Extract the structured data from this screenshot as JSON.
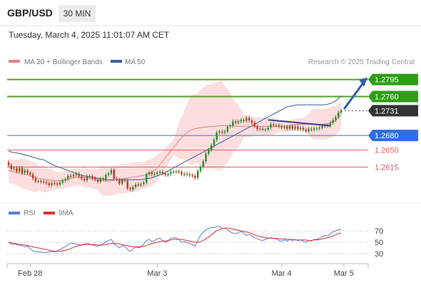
{
  "header": {
    "instrument": "GBP/USD",
    "timeframe": "30 MIN",
    "datetime": "Tuesday, March 4, 2025 11:01:07 AM CET"
  },
  "legend": {
    "ma20": "MA 20 + Bollinger Bands",
    "ma50": "MA 50",
    "credit": "Research © 2025 Trading Central"
  },
  "rsi_legend": {
    "rsi": "RSI",
    "ma": "9MA"
  },
  "colors": {
    "bull": "#2d8a2d",
    "bear": "#c0392b",
    "ma20": "#e88080",
    "ma50": "#3a5f9f",
    "band_fill": "#fbd8d8",
    "pivot": "#3a6fd8",
    "support": "#e06060",
    "resistance": "#5aa02c",
    "current": "#333333",
    "rsi": "#5b7fd6",
    "rsi_ma": "#e03030",
    "arrow": "#2f5fa8",
    "trend": "#3a3f8f"
  },
  "chart_data": [
    {
      "type": "candlestick",
      "title": "GBP/USD 30 MIN",
      "ylim": [
        1.256,
        1.2815
      ],
      "y_ticks": [],
      "x_ticks": [
        "Feb 28",
        "Mar 3",
        "Mar 4",
        "Mar 5"
      ],
      "x_tick_index": [
        8,
        55,
        101,
        124
      ],
      "levels": [
        {
          "label": "1.2795",
          "value": 1.2795,
          "role": "resistance"
        },
        {
          "label": "1.2760",
          "value": 1.276,
          "role": "resistance"
        },
        {
          "label": "1.2731",
          "value": 1.2731,
          "role": "current"
        },
        {
          "label": "1.2680",
          "value": 1.268,
          "role": "pivot"
        },
        {
          "label": "1.2650",
          "value": 1.265,
          "role": "support"
        },
        {
          "label": "1.2615",
          "value": 1.2615,
          "role": "support"
        }
      ],
      "closes": [
        1.2619,
        1.2611,
        1.2613,
        1.2606,
        1.2613,
        1.2603,
        1.2608,
        1.2603,
        1.26,
        1.2592,
        1.2586,
        1.2586,
        1.2585,
        1.2584,
        1.2582,
        1.2578,
        1.2582,
        1.2581,
        1.2579,
        1.2583,
        1.2587,
        1.259,
        1.2597,
        1.2596,
        1.2599,
        1.2601,
        1.2596,
        1.2591,
        1.2588,
        1.2595,
        1.2596,
        1.2592,
        1.2589,
        1.2585,
        1.2591,
        1.259,
        1.2599,
        1.2602,
        1.2609,
        1.2591,
        1.2589,
        1.2581,
        1.2588,
        1.2587,
        1.2571,
        1.2569,
        1.2574,
        1.2579,
        1.2578,
        1.258,
        1.2583,
        1.26,
        1.2604,
        1.26,
        1.2601,
        1.2604,
        1.2605,
        1.2602,
        1.2599,
        1.2601,
        1.2605,
        1.2606,
        1.2606,
        1.2605,
        1.26,
        1.2601,
        1.26,
        1.2598,
        1.2597,
        1.2593,
        1.2607,
        1.2615,
        1.2627,
        1.2643,
        1.265,
        1.266,
        1.2671,
        1.2686,
        1.2688,
        1.2686,
        1.2688,
        1.2698,
        1.27,
        1.2709,
        1.2706,
        1.2709,
        1.2712,
        1.271,
        1.2716,
        1.2711,
        1.2706,
        1.2699,
        1.2693,
        1.2694,
        1.2692,
        1.2692,
        1.2696,
        1.2703,
        1.2701,
        1.2701,
        1.2699,
        1.2697,
        1.2698,
        1.2694,
        1.2699,
        1.2694,
        1.2698,
        1.2693,
        1.2695,
        1.2692,
        1.2689,
        1.2693,
        1.2692,
        1.2694,
        1.2694,
        1.2696,
        1.2699,
        1.2701,
        1.27,
        1.2706,
        1.2712,
        1.2718,
        1.2727,
        1.2731
      ],
      "ma20_values": [
        1.2608,
        1.2606,
        1.2605,
        1.2604,
        1.2603,
        1.2602,
        1.26,
        1.2599,
        1.2597,
        1.2595,
        1.2594,
        1.2592,
        1.2591,
        1.259,
        1.2589,
        1.2588,
        1.2588,
        1.2587,
        1.2587,
        1.2587,
        1.2588,
        1.2589,
        1.259,
        1.2592,
        1.2593,
        1.2594,
        1.2594,
        1.2595,
        1.2594,
        1.2593,
        1.2592,
        1.2591,
        1.259,
        1.2589,
        1.2588,
        1.2587,
        1.2586,
        1.2586,
        1.2587,
        1.2588,
        1.2589,
        1.259,
        1.2591,
        1.2591,
        1.2592,
        1.2593,
        1.2594,
        1.2595,
        1.2596,
        1.2597,
        1.2598,
        1.26,
        1.2602,
        1.2604,
        1.2608,
        1.2614,
        1.262,
        1.2627,
        1.2634,
        1.2641,
        1.2648,
        1.2655,
        1.2662,
        1.2669,
        1.2675,
        1.2681,
        1.2686,
        1.269,
        1.2692,
        1.2694,
        1.2695,
        1.2696,
        1.2697,
        1.2697,
        1.2698,
        1.2698,
        1.2699,
        1.2699,
        1.27,
        1.27,
        1.27,
        1.27,
        1.27,
        1.27,
        1.2699,
        1.2699,
        1.2699,
        1.2699,
        1.2699,
        1.2699,
        1.2699,
        1.2699,
        1.2699,
        1.2699,
        1.2699,
        1.2699,
        1.2699,
        1.2699,
        1.2699,
        1.2699,
        1.2699,
        1.2699,
        1.2699,
        1.2699,
        1.27,
        1.2701,
        1.2702,
        1.2703,
        1.2703,
        1.2703,
        1.2703,
        1.2703,
        1.2703,
        1.2703,
        1.2703,
        1.2703,
        1.2703,
        1.2703,
        1.2704,
        1.2706,
        1.2708,
        1.2711,
        1.2716,
        1.2721
      ],
      "ma50_values": [
        1.2669,
        1.2666,
        1.2663,
        1.266,
        1.2657,
        1.2654,
        1.2651,
        1.2648,
        1.2645,
        1.2642,
        1.2639,
        1.2636,
        1.2633,
        1.263,
        1.2627,
        1.2624,
        1.2621,
        1.2618,
        1.2616,
        1.2614,
        1.2612,
        1.261,
        1.2608,
        1.2606,
        1.2604,
        1.2602,
        1.26,
        1.2598,
        1.2597,
        1.2596,
        1.2595,
        1.2594,
        1.2593,
        1.2592,
        1.2591,
        1.259,
        1.2589,
        1.2589,
        1.2589,
        1.2589,
        1.2589,
        1.2589,
        1.2589,
        1.2589,
        1.2589,
        1.2589,
        1.2589,
        1.2589,
        1.2589,
        1.2589,
        1.259,
        1.2591,
        1.2592,
        1.2593,
        1.2595,
        1.2597,
        1.2599,
        1.2601,
        1.2604,
        1.2607,
        1.261,
        1.2613,
        1.2616,
        1.2619,
        1.2622,
        1.2625,
        1.2628,
        1.2631,
        1.2634,
        1.2637,
        1.264,
        1.2643,
        1.2646,
        1.2649,
        1.2652,
        1.2655,
        1.2658,
        1.2661,
        1.2664,
        1.2667,
        1.267,
        1.2673,
        1.2676,
        1.2679,
        1.2682,
        1.2685,
        1.2688,
        1.2691,
        1.2694,
        1.2697,
        1.27,
        1.2703,
        1.2706,
        1.2709,
        1.2712,
        1.2715,
        1.2718,
        1.2721,
        1.2724,
        1.2727,
        1.273,
        1.2733,
        1.2736,
        1.2739,
        1.2742,
        1.2745,
        1.2748,
        1.2751,
        1.2754,
        1.2757,
        1.276,
        1.2763,
        1.2766,
        1.2769,
        1.2772,
        1.2775,
        1.2778,
        1.2781,
        1.2784,
        1.2787,
        1.279,
        1.2793,
        1.2796,
        1.2799,
        1.2802
      ]
    },
    {
      "type": "line",
      "title": "RSI",
      "ylim": [
        20,
        80
      ],
      "y_ticks": [
        70,
        50,
        30
      ],
      "series": [
        {
          "name": "RSI",
          "values": [
            49,
            47,
            47,
            46,
            45,
            44,
            42,
            43,
            39,
            35,
            34,
            33,
            33,
            32,
            32,
            33,
            34,
            33,
            35,
            37,
            40,
            42,
            46,
            48,
            48,
            47,
            46,
            45,
            47,
            48,
            47,
            45,
            44,
            43,
            45,
            47,
            51,
            53,
            55,
            47,
            44,
            40,
            44,
            43,
            37,
            34,
            38,
            42,
            40,
            42,
            47,
            53,
            55,
            51,
            53,
            56,
            57,
            53,
            50,
            52,
            57,
            58,
            57,
            55,
            50,
            51,
            50,
            48,
            46,
            43,
            53,
            62,
            68,
            72,
            74,
            76,
            76,
            77,
            78,
            74,
            75,
            72,
            68,
            66,
            65,
            67,
            69,
            66,
            62,
            64,
            61,
            58,
            56,
            54,
            53,
            55,
            57,
            58,
            57,
            56,
            53,
            52,
            54,
            52,
            55,
            53,
            55,
            53,
            54,
            52,
            50,
            53,
            52,
            55,
            55,
            57,
            60,
            62,
            61,
            65,
            68,
            70,
            72,
            72
          ]
        },
        {
          "name": "9MA",
          "values": [
            50,
            49,
            48,
            47,
            46,
            46,
            45,
            44,
            43,
            42,
            41,
            40,
            39,
            38,
            37,
            36,
            35,
            34,
            34,
            34,
            35,
            36,
            37,
            39,
            41,
            43,
            44,
            45,
            46,
            46,
            46,
            46,
            46,
            45,
            45,
            45,
            46,
            47,
            48,
            48,
            48,
            47,
            46,
            45,
            44,
            43,
            42,
            42,
            42,
            42,
            43,
            44,
            46,
            48,
            49,
            50,
            51,
            52,
            52,
            53,
            54,
            55,
            55,
            55,
            55,
            54,
            53,
            52,
            51,
            50,
            50,
            51,
            53,
            56,
            59,
            63,
            67,
            70,
            72,
            74,
            75,
            75,
            74,
            73,
            72,
            71,
            70,
            69,
            68,
            67,
            65,
            63,
            61,
            60,
            59,
            58,
            57,
            57,
            57,
            57,
            56,
            56,
            56,
            55,
            55,
            55,
            54,
            54,
            54,
            54,
            54,
            53,
            53,
            54,
            54,
            55,
            56,
            57,
            58,
            59,
            61,
            63,
            65,
            66
          ]
        }
      ],
      "x_ticks": [
        "Feb 28",
        "Mar 3",
        "Mar 4",
        "Mar 5"
      ]
    }
  ]
}
